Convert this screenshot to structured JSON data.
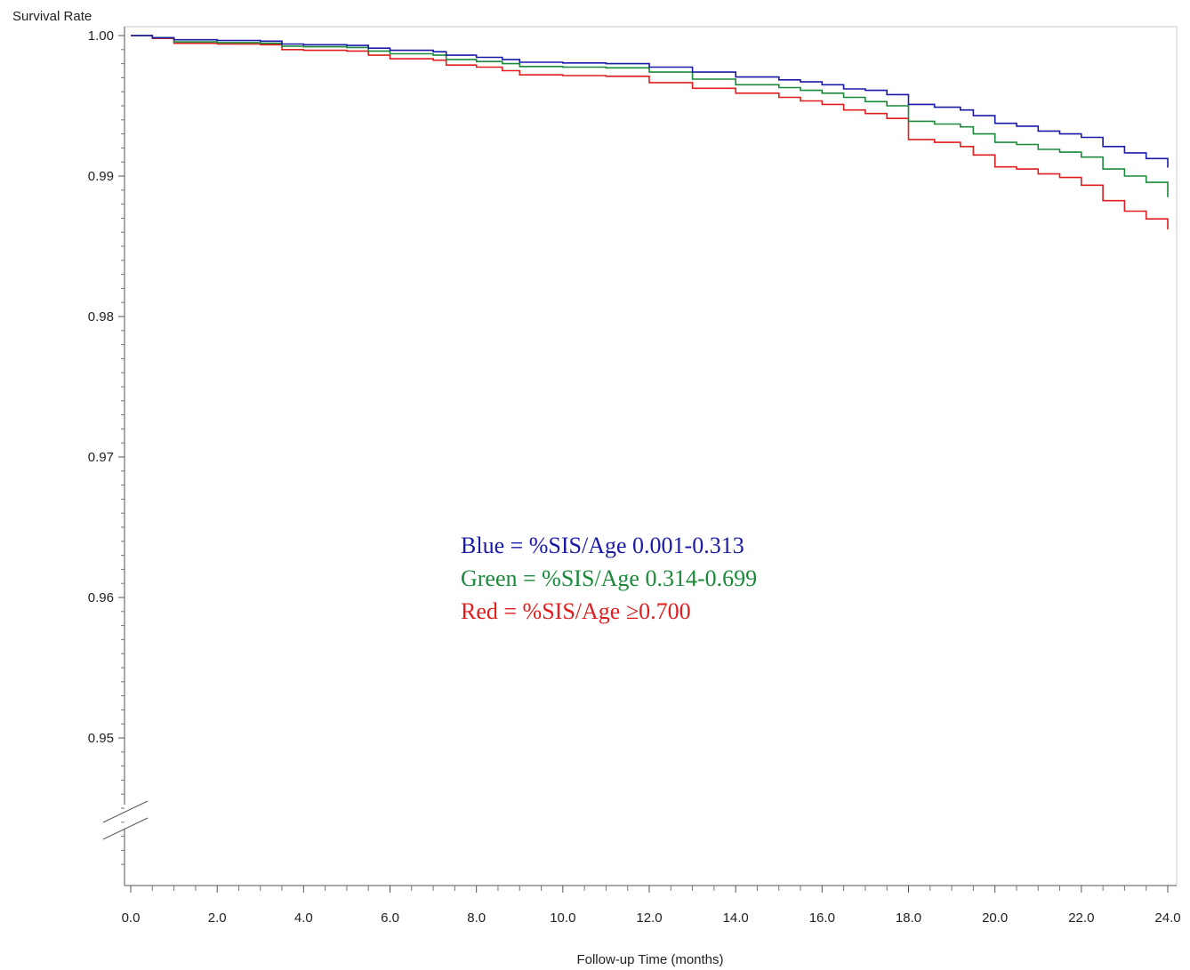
{
  "chart_data": {
    "type": "line",
    "ylabel": "Survival Rate",
    "xlabel": "Follow-up Time (months)",
    "xlim": [
      0,
      24
    ],
    "ylim": [
      0.94,
      1.0
    ],
    "y_axis_break": true,
    "x_ticks": [
      {
        "value": 0,
        "label": "0.0"
      },
      {
        "value": 2,
        "label": "2.0"
      },
      {
        "value": 4,
        "label": "4.0"
      },
      {
        "value": 6,
        "label": "6.0"
      },
      {
        "value": 8,
        "label": "8.0"
      },
      {
        "value": 10,
        "label": "10.0"
      },
      {
        "value": 12,
        "label": "12.0"
      },
      {
        "value": 14,
        "label": "14.0"
      },
      {
        "value": 16,
        "label": "16.0"
      },
      {
        "value": 18,
        "label": "18.0"
      },
      {
        "value": 20,
        "label": "20.0"
      },
      {
        "value": 22,
        "label": "22.0"
      },
      {
        "value": 24,
        "label": "24.0"
      }
    ],
    "y_ticks": [
      {
        "value": 1.0,
        "label": "1.00"
      },
      {
        "value": 0.99,
        "label": "0.99"
      },
      {
        "value": 0.98,
        "label": "0.98"
      },
      {
        "value": 0.97,
        "label": "0.97"
      },
      {
        "value": 0.96,
        "label": "0.96"
      },
      {
        "value": 0.95,
        "label": "0.95"
      }
    ],
    "grid": false,
    "step": true,
    "series": [
      {
        "color": "#1a1aa8",
        "points": [
          [
            0,
            1.0
          ],
          [
            0.5,
            0.99985
          ],
          [
            1,
            0.9997
          ],
          [
            2,
            0.99965
          ],
          [
            3,
            0.9996
          ],
          [
            3.5,
            0.9994
          ],
          [
            4,
            0.99935
          ],
          [
            5,
            0.9993
          ],
          [
            5.5,
            0.9991
          ],
          [
            6,
            0.99895
          ],
          [
            7,
            0.99885
          ],
          [
            7.3,
            0.9986
          ],
          [
            8,
            0.99845
          ],
          [
            8.6,
            0.9983
          ],
          [
            9,
            0.9981
          ],
          [
            10,
            0.99805
          ],
          [
            11,
            0.998
          ],
          [
            12,
            0.99775
          ],
          [
            13,
            0.9974
          ],
          [
            14,
            0.99705
          ],
          [
            15,
            0.99685
          ],
          [
            15.5,
            0.9967
          ],
          [
            16,
            0.9965
          ],
          [
            16.5,
            0.9962
          ],
          [
            17,
            0.9961
          ],
          [
            17.5,
            0.9958
          ],
          [
            18,
            0.9951
          ],
          [
            18.6,
            0.9949
          ],
          [
            19.2,
            0.9947
          ],
          [
            19.5,
            0.9943
          ],
          [
            20,
            0.99375
          ],
          [
            20.5,
            0.99355
          ],
          [
            21,
            0.9932
          ],
          [
            21.5,
            0.993
          ],
          [
            22,
            0.99275
          ],
          [
            22.5,
            0.9921
          ],
          [
            23,
            0.99165
          ],
          [
            23.5,
            0.99125
          ],
          [
            24,
            0.9906
          ]
        ]
      },
      {
        "color": "#1a8a3a",
        "points": [
          [
            0,
            1.0
          ],
          [
            0.5,
            0.99985
          ],
          [
            1,
            0.99955
          ],
          [
            2,
            0.9995
          ],
          [
            3,
            0.99945
          ],
          [
            3.5,
            0.99925
          ],
          [
            4,
            0.9992
          ],
          [
            5,
            0.99915
          ],
          [
            5.5,
            0.9989
          ],
          [
            6,
            0.9987
          ],
          [
            7,
            0.9986
          ],
          [
            7.3,
            0.9983
          ],
          [
            8,
            0.99815
          ],
          [
            8.6,
            0.998
          ],
          [
            9,
            0.9978
          ],
          [
            10,
            0.99775
          ],
          [
            11,
            0.9977
          ],
          [
            12,
            0.9974
          ],
          [
            13,
            0.9969
          ],
          [
            14,
            0.9965
          ],
          [
            15,
            0.9963
          ],
          [
            15.5,
            0.9961
          ],
          [
            16,
            0.9959
          ],
          [
            16.5,
            0.9956
          ],
          [
            17,
            0.9953
          ],
          [
            17.5,
            0.995
          ],
          [
            18,
            0.9939
          ],
          [
            18.6,
            0.9937
          ],
          [
            19.2,
            0.9935
          ],
          [
            19.5,
            0.993
          ],
          [
            20,
            0.9924
          ],
          [
            20.5,
            0.99225
          ],
          [
            21,
            0.9919
          ],
          [
            21.5,
            0.9917
          ],
          [
            22,
            0.99135
          ],
          [
            22.5,
            0.9905
          ],
          [
            23,
            0.99
          ],
          [
            23.5,
            0.98955
          ],
          [
            24,
            0.9885
          ]
        ]
      },
      {
        "color": "#e11d1d",
        "points": [
          [
            0,
            1.0
          ],
          [
            0.5,
            0.9998
          ],
          [
            1,
            0.99945
          ],
          [
            2,
            0.9994
          ],
          [
            3,
            0.99935
          ],
          [
            3.5,
            0.999
          ],
          [
            4,
            0.99895
          ],
          [
            5,
            0.9989
          ],
          [
            5.5,
            0.9986
          ],
          [
            6,
            0.99835
          ],
          [
            7,
            0.99825
          ],
          [
            7.3,
            0.9979
          ],
          [
            8,
            0.99775
          ],
          [
            8.6,
            0.9975
          ],
          [
            9,
            0.9972
          ],
          [
            10,
            0.99715
          ],
          [
            11,
            0.9971
          ],
          [
            12,
            0.99665
          ],
          [
            13,
            0.99625
          ],
          [
            14,
            0.9959
          ],
          [
            15,
            0.9956
          ],
          [
            15.5,
            0.99535
          ],
          [
            16,
            0.9951
          ],
          [
            16.5,
            0.9947
          ],
          [
            17,
            0.99445
          ],
          [
            17.5,
            0.9941
          ],
          [
            18,
            0.9926
          ],
          [
            18.6,
            0.9924
          ],
          [
            19.2,
            0.9921
          ],
          [
            19.5,
            0.9915
          ],
          [
            20,
            0.99065
          ],
          [
            20.5,
            0.9905
          ],
          [
            21,
            0.99015
          ],
          [
            21.5,
            0.9899
          ],
          [
            22,
            0.98935
          ],
          [
            22.5,
            0.98825
          ],
          [
            23,
            0.9875
          ],
          [
            23.5,
            0.98695
          ],
          [
            24,
            0.9862
          ]
        ]
      }
    ],
    "annotations": [
      {
        "text": "Blue = %SIS/Age 0.001-0.313",
        "color": "#1a1aa8"
      },
      {
        "text": "Green = %SIS/Age 0.314-0.699",
        "color": "#1a8a3a"
      },
      {
        "text": "Red = %SIS/Age ≥0.700",
        "color": "#e11d1d"
      }
    ]
  }
}
